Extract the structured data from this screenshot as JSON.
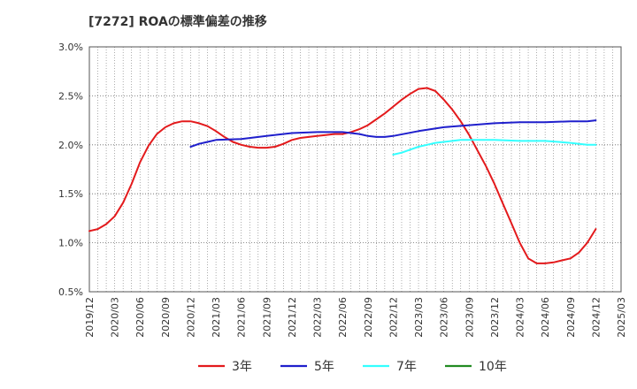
{
  "chart_data": {
    "type": "line",
    "title": "[7272]  ROAの標準偏差の推移",
    "xlabel": "",
    "ylabel": "",
    "y_ticks": [
      "0.5%",
      "1.0%",
      "1.5%",
      "2.0%",
      "2.5%",
      "3.0%"
    ],
    "ylim": [
      0.5,
      3.0
    ],
    "x_ticks": [
      "2019/12",
      "2020/03",
      "2020/06",
      "2020/09",
      "2020/12",
      "2021/03",
      "2021/06",
      "2021/09",
      "2021/12",
      "2022/03",
      "2022/06",
      "2022/09",
      "2022/12",
      "2023/03",
      "2023/06",
      "2023/09",
      "2023/12",
      "2024/03",
      "2024/06",
      "2024/09",
      "2024/12",
      "2025/03"
    ],
    "grid": true,
    "legend_position": "bottom",
    "series": [
      {
        "name": "3年",
        "color": "#e31a1c",
        "points": [
          [
            "2019/12",
            1.12
          ],
          [
            "2020/01",
            1.14
          ],
          [
            "2020/02",
            1.19
          ],
          [
            "2020/03",
            1.27
          ],
          [
            "2020/04",
            1.41
          ],
          [
            "2020/05",
            1.6
          ],
          [
            "2020/06",
            1.82
          ],
          [
            "2020/07",
            1.99
          ],
          [
            "2020/08",
            2.11
          ],
          [
            "2020/09",
            2.18
          ],
          [
            "2020/10",
            2.22
          ],
          [
            "2020/11",
            2.24
          ],
          [
            "2020/12",
            2.24
          ],
          [
            "2021/01",
            2.22
          ],
          [
            "2021/02",
            2.19
          ],
          [
            "2021/03",
            2.14
          ],
          [
            "2021/04",
            2.08
          ],
          [
            "2021/05",
            2.03
          ],
          [
            "2021/06",
            2.0
          ],
          [
            "2021/07",
            1.98
          ],
          [
            "2021/08",
            1.97
          ],
          [
            "2021/09",
            1.97
          ],
          [
            "2021/10",
            1.98
          ],
          [
            "2021/11",
            2.01
          ],
          [
            "2021/12",
            2.05
          ],
          [
            "2022/01",
            2.07
          ],
          [
            "2022/02",
            2.08
          ],
          [
            "2022/03",
            2.09
          ],
          [
            "2022/04",
            2.1
          ],
          [
            "2022/05",
            2.11
          ],
          [
            "2022/06",
            2.11
          ],
          [
            "2022/07",
            2.13
          ],
          [
            "2022/08",
            2.16
          ],
          [
            "2022/09",
            2.2
          ],
          [
            "2022/10",
            2.26
          ],
          [
            "2022/11",
            2.32
          ],
          [
            "2022/12",
            2.39
          ],
          [
            "2023/01",
            2.46
          ],
          [
            "2023/02",
            2.52
          ],
          [
            "2023/03",
            2.57
          ],
          [
            "2023/04",
            2.58
          ],
          [
            "2023/05",
            2.55
          ],
          [
            "2023/06",
            2.46
          ],
          [
            "2023/07",
            2.36
          ],
          [
            "2023/08",
            2.24
          ],
          [
            "2023/09",
            2.1
          ],
          [
            "2023/10",
            1.94
          ],
          [
            "2023/11",
            1.78
          ],
          [
            "2023/12",
            1.6
          ],
          [
            "2024/01",
            1.4
          ],
          [
            "2024/02",
            1.2
          ],
          [
            "2024/03",
            1.0
          ],
          [
            "2024/04",
            0.84
          ],
          [
            "2024/05",
            0.79
          ],
          [
            "2024/06",
            0.79
          ],
          [
            "2024/07",
            0.8
          ],
          [
            "2024/08",
            0.82
          ],
          [
            "2024/09",
            0.84
          ],
          [
            "2024/10",
            0.9
          ],
          [
            "2024/11",
            1.0
          ],
          [
            "2024/12",
            1.14
          ]
        ]
      },
      {
        "name": "5年",
        "color": "#1f1fcc",
        "points": [
          [
            "2020/12",
            1.98
          ],
          [
            "2021/01",
            2.01
          ],
          [
            "2021/02",
            2.03
          ],
          [
            "2021/03",
            2.05
          ],
          [
            "2021/06",
            2.06
          ],
          [
            "2021/09",
            2.09
          ],
          [
            "2021/12",
            2.12
          ],
          [
            "2022/03",
            2.13
          ],
          [
            "2022/06",
            2.13
          ],
          [
            "2022/08",
            2.11
          ],
          [
            "2022/09",
            2.09
          ],
          [
            "2022/10",
            2.08
          ],
          [
            "2022/11",
            2.08
          ],
          [
            "2022/12",
            2.09
          ],
          [
            "2023/03",
            2.14
          ],
          [
            "2023/06",
            2.18
          ],
          [
            "2023/09",
            2.2
          ],
          [
            "2023/12",
            2.22
          ],
          [
            "2024/03",
            2.23
          ],
          [
            "2024/06",
            2.23
          ],
          [
            "2024/09",
            2.24
          ],
          [
            "2024/11",
            2.24
          ],
          [
            "2024/12",
            2.25
          ]
        ]
      },
      {
        "name": "7年",
        "color": "#33ffff",
        "points": [
          [
            "2022/12",
            1.9
          ],
          [
            "2023/01",
            1.92
          ],
          [
            "2023/02",
            1.95
          ],
          [
            "2023/03",
            1.98
          ],
          [
            "2023/04",
            2.0
          ],
          [
            "2023/05",
            2.02
          ],
          [
            "2023/06",
            2.03
          ],
          [
            "2023/07",
            2.04
          ],
          [
            "2023/08",
            2.05
          ],
          [
            "2023/09",
            2.05
          ],
          [
            "2023/10",
            2.05
          ],
          [
            "2023/12",
            2.05
          ],
          [
            "2024/03",
            2.04
          ],
          [
            "2024/06",
            2.04
          ],
          [
            "2024/09",
            2.02
          ],
          [
            "2024/11",
            2.0
          ],
          [
            "2024/12",
            2.0
          ]
        ]
      },
      {
        "name": "10年",
        "color": "#228b22",
        "points": []
      }
    ]
  }
}
